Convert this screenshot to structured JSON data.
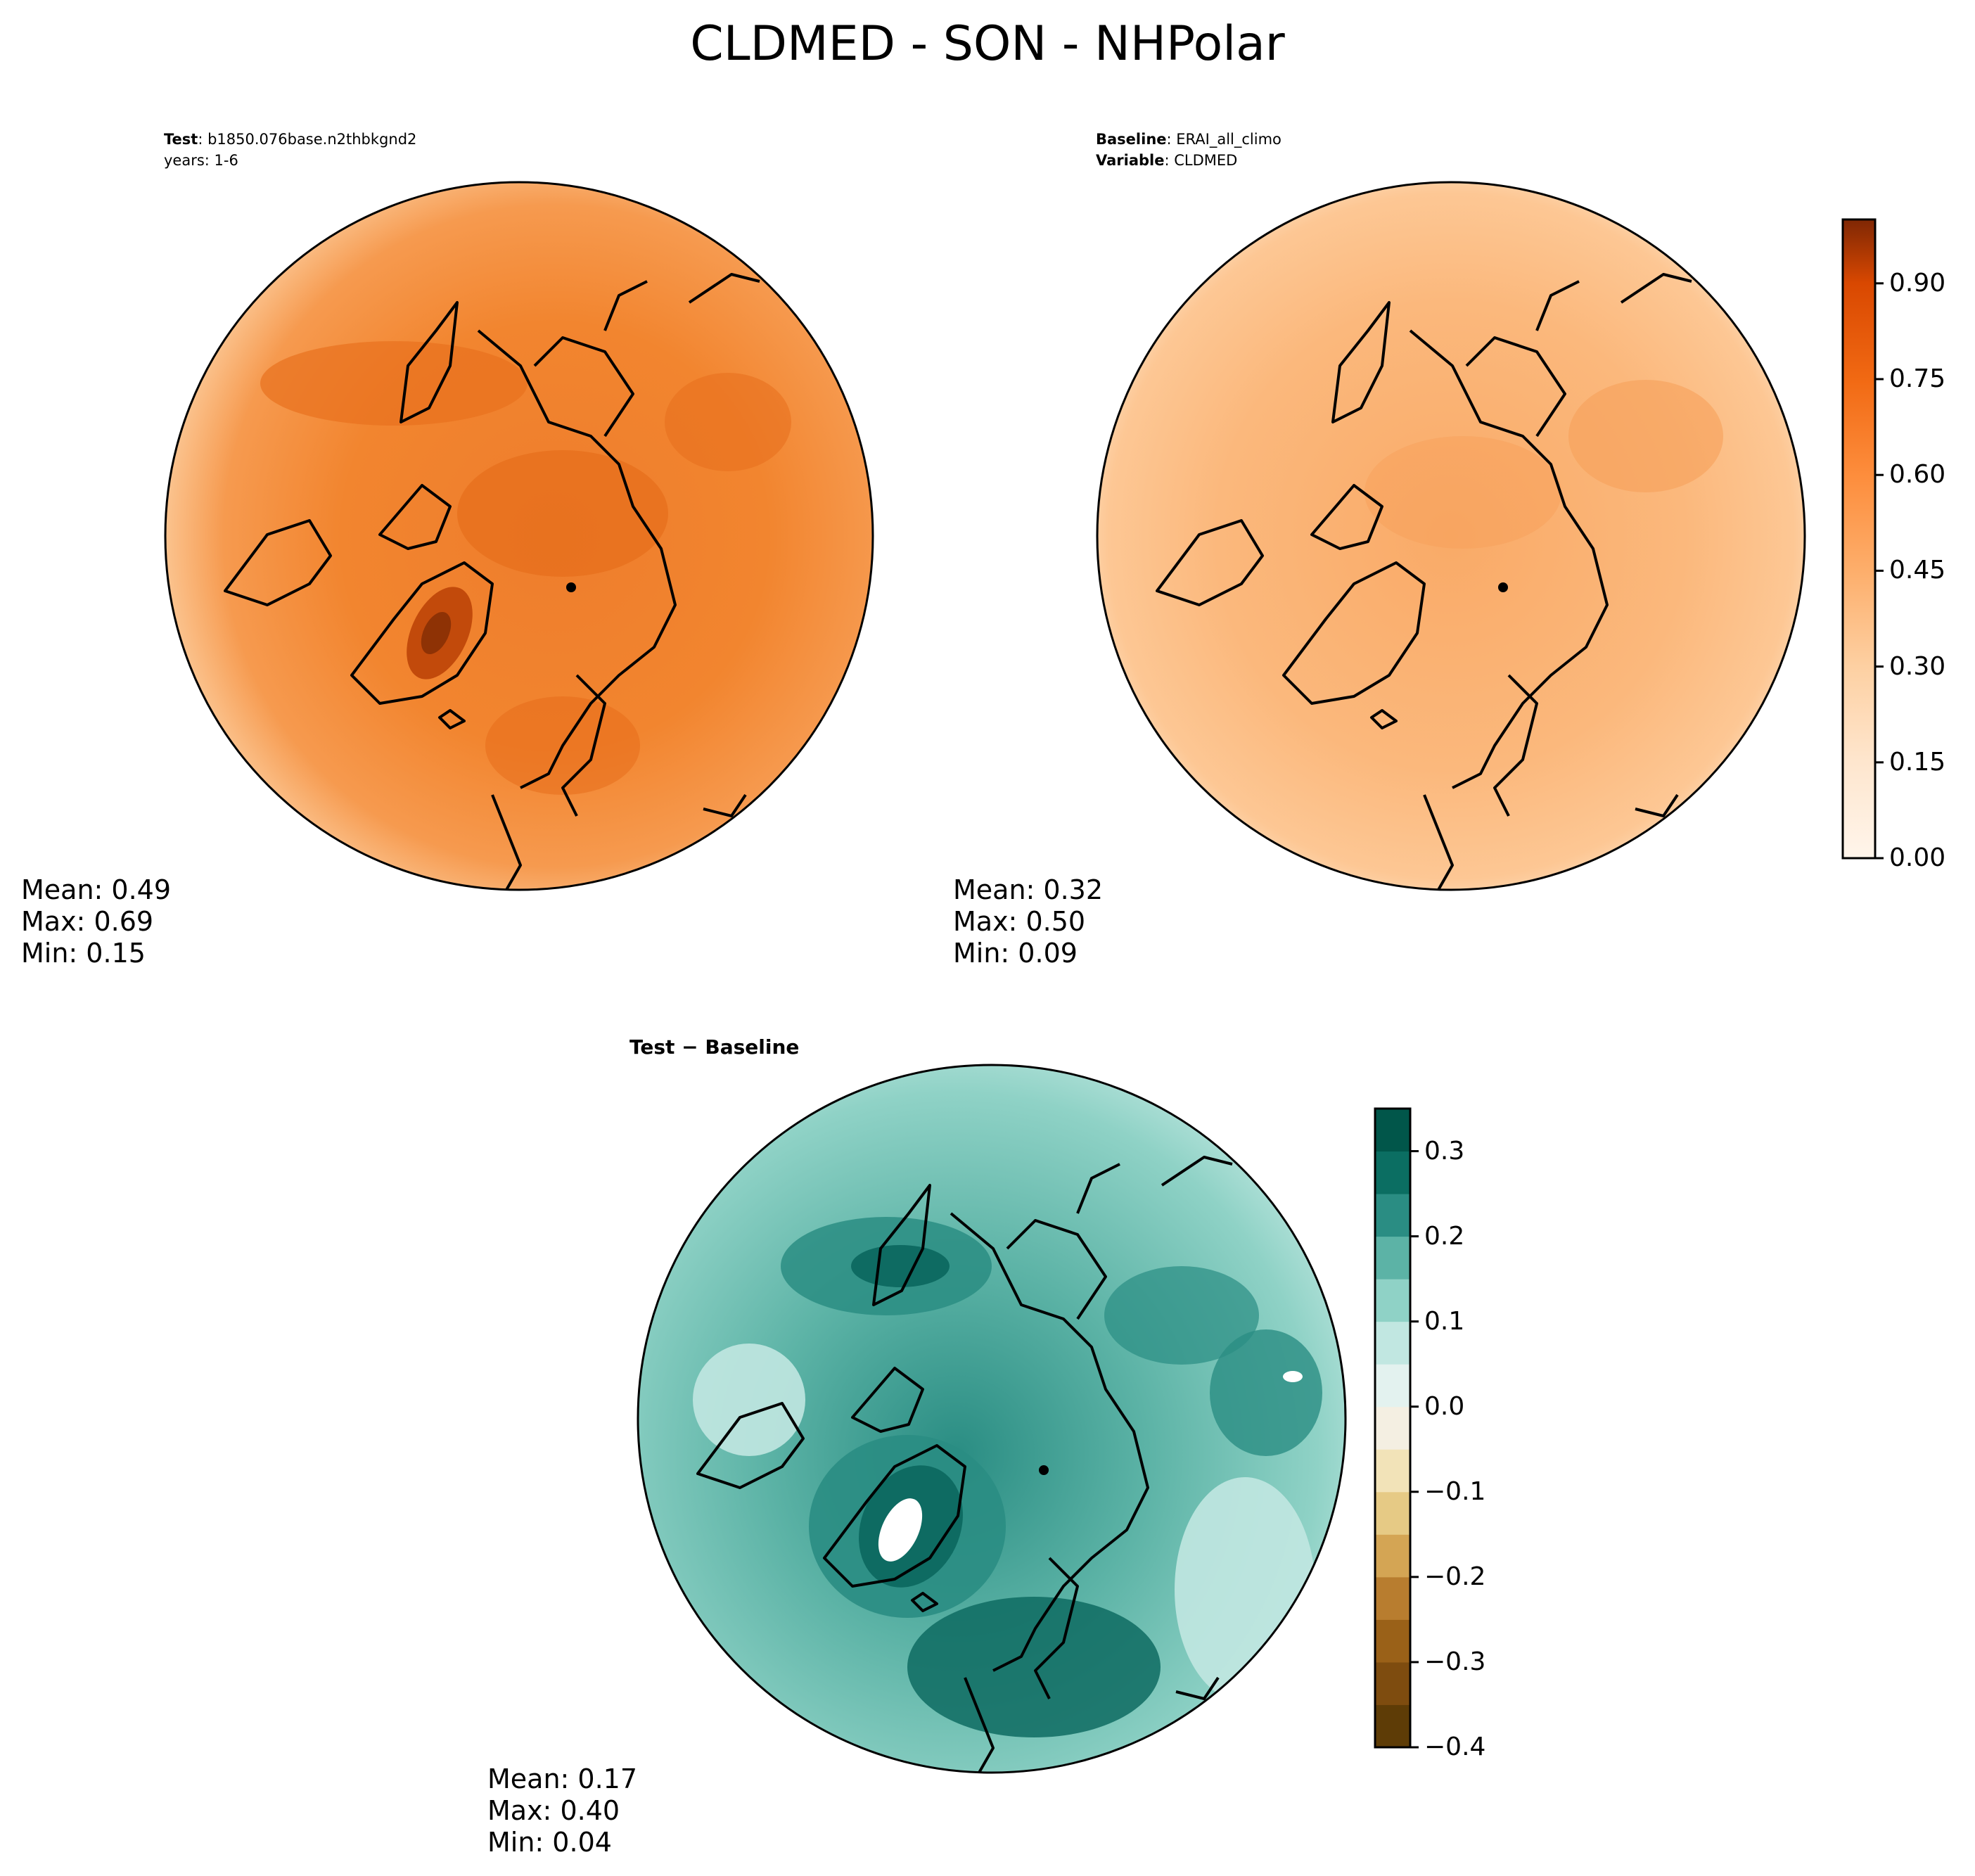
{
  "title": "CLDMED - SON - NHPolar",
  "colors": {
    "test_fill_outer": "#fbc38e",
    "test_fill_mid": "#f69a4f",
    "test_fill_inner": "#ee7d2c",
    "test_fill_dark": "#8e3205",
    "base_fill_outer": "#fee2c5",
    "base_fill_mid": "#fdc794",
    "base_fill_inner": "#f9aa67",
    "diff_fill_outer": "#8fd2c6",
    "diff_fill_mid": "#5cb3a6",
    "diff_fill_inner": "#2a8d83",
    "diff_fill_dark": "#0e6b62",
    "coastline": "#000000"
  },
  "panels": [
    {
      "id": "test",
      "header_bold": "Test",
      "header_text": ": b1850.076base.n2thbkgnd2",
      "header_line2": "years: 1-6",
      "mean": "Mean:  0.49",
      "max": "Max:  0.69",
      "min": "Min:  0.15"
    },
    {
      "id": "baseline",
      "header_bold": "Baseline",
      "header_text": ": ERAI_all_climo",
      "header_bold2": "Variable",
      "header_text2": ": CLDMED",
      "mean": "Mean:  0.32",
      "max": "Max:  0.50",
      "min": "Min:  0.09"
    },
    {
      "id": "difference",
      "header": "Test − Baseline",
      "mean": "Mean:  0.17",
      "max": "Max:  0.40",
      "min": "Min:  0.04"
    }
  ],
  "colorbars": [
    {
      "id": "main",
      "colormap": "Oranges",
      "range": [
        0.0,
        1.0
      ],
      "levels": 20,
      "ticks": [
        {
          "value": 0.0,
          "label": "0.00"
        },
        {
          "value": 0.15,
          "label": "0.15"
        },
        {
          "value": 0.3,
          "label": "0.30"
        },
        {
          "value": 0.45,
          "label": "0.45"
        },
        {
          "value": 0.6,
          "label": "0.60"
        },
        {
          "value": 0.75,
          "label": "0.75"
        },
        {
          "value": 0.9,
          "label": "0.90"
        }
      ],
      "colors": [
        "#fff5eb",
        "#fee9d4",
        "#fedcbb",
        "#fdc896",
        "#fdb272",
        "#fd9b51",
        "#f9822f",
        "#f06712",
        "#db4d05",
        "#b93c02",
        "#9b3203",
        "#842903",
        "#7f2704",
        "#fee2c5",
        "#fdd3a9",
        "#fdbd83",
        "#fda660",
        "#fb8d3d",
        "#f3701b",
        "#e35508"
      ]
    },
    {
      "id": "diff",
      "colormap": "BrBG",
      "range": [
        -0.4,
        0.35
      ],
      "levels": 15,
      "ticks": [
        {
          "value": -0.4,
          "label": "−0.4"
        },
        {
          "value": -0.3,
          "label": "−0.3"
        },
        {
          "value": -0.2,
          "label": "−0.2"
        },
        {
          "value": -0.1,
          "label": "−0.1"
        },
        {
          "value": 0.0,
          "label": "0.0"
        },
        {
          "value": 0.1,
          "label": "0.1"
        },
        {
          "value": 0.2,
          "label": "0.2"
        },
        {
          "value": 0.3,
          "label": "0.3"
        }
      ],
      "colors": [
        "#5e3c06",
        "#7e4c0f",
        "#9a6118",
        "#b87d2f",
        "#d4a554",
        "#e6ca85",
        "#f2e3b8",
        "#f4efe2",
        "#e3f2ef",
        "#c1e7e1",
        "#8fd2c6",
        "#5cb3a6",
        "#2a8d83",
        "#0b6e62",
        "#01564a"
      ]
    }
  ]
}
